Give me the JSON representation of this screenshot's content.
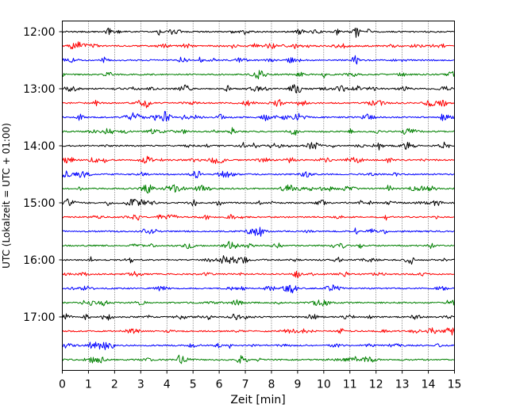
{
  "chart_data": {
    "type": "line",
    "title": "",
    "xlabel": "Zeit  [min]",
    "ylabel": "UTC (Lokalzeit = UTC + 01:00)",
    "xlim": [
      0,
      15
    ],
    "x_ticks": [
      "0",
      "1",
      "2",
      "3",
      "4",
      "5",
      "6",
      "7",
      "8",
      "9",
      "10",
      "11",
      "12",
      "13",
      "14",
      "15"
    ],
    "y_ticks": [
      "12:00",
      "13:00",
      "14:00",
      "15:00",
      "16:00",
      "17:00"
    ],
    "grid": "vertical dotted lines at each minute",
    "legend": "none",
    "trace_interval_min": 15,
    "start_time": "12:00",
    "end_time": "17:45",
    "trace_colors": [
      "#000000",
      "#ff0000",
      "#0000ff",
      "#008000"
    ],
    "trace_starts": [
      "12:00",
      "12:15",
      "12:30",
      "12:45",
      "13:00",
      "13:15",
      "13:30",
      "13:45",
      "14:00",
      "14:15",
      "14:30",
      "14:45",
      "15:00",
      "15:15",
      "15:30",
      "15:45",
      "16:00",
      "16:15",
      "16:30",
      "16:45",
      "17:00",
      "17:15",
      "17:30",
      "17:45"
    ]
  }
}
